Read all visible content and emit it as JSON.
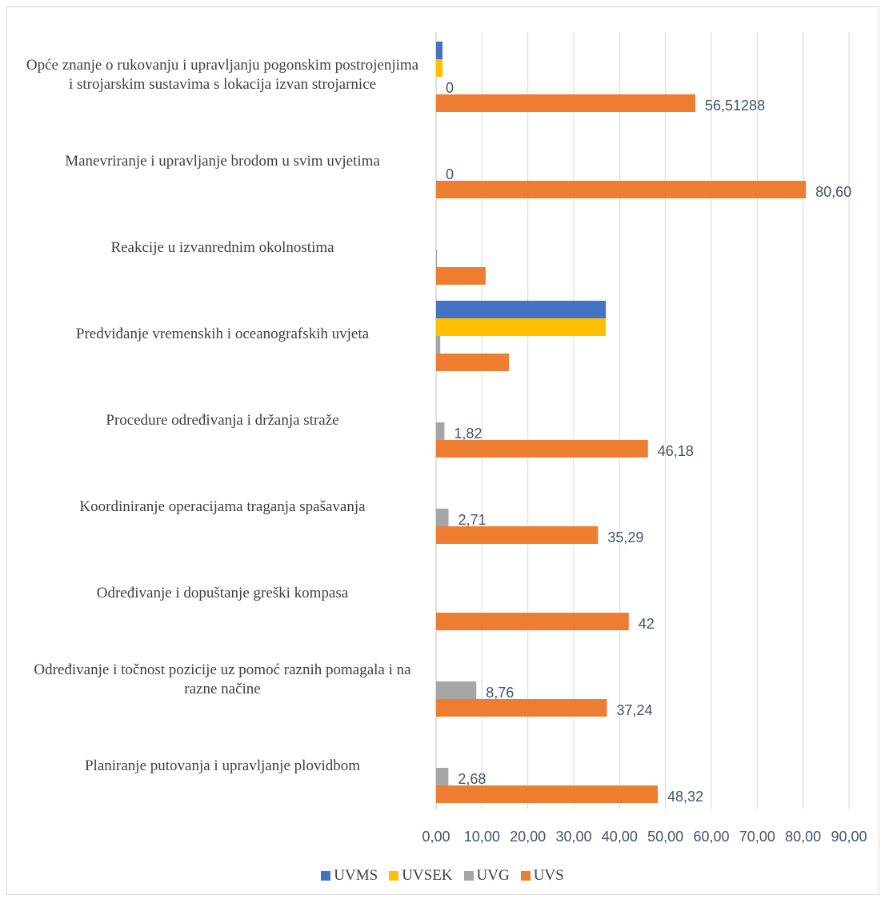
{
  "chart_data": {
    "type": "bar",
    "orientation": "horizontal",
    "categories": [
      "Opće znanje o rukovanju i upravljanju pogonskim postrojenjima i strojarskim sustavima s lokacija izvan strojarnice",
      "Manevriranje i upravljanje brodom u svim uvjetima",
      "Reakcije u izvanrednim okolnostima",
      "Predviđanje vremenskih i oceanografskih uvjeta",
      "Procedure određivanja i držanja straže",
      "Koordiniranje operacijama traganja spašavanja",
      "Određivanje i dopuštanje greški kompasa",
      "Određivanje i točnost pozicije uz pomoć raznih pomagala i na razne načine",
      "Planiranje putovanja i upravljanje plovidbom"
    ],
    "series": [
      {
        "name": "UVMS",
        "color": "#4472c4",
        "values": [
          1.4,
          null,
          null,
          37,
          null,
          null,
          null,
          null,
          null
        ]
      },
      {
        "name": "UVSEK",
        "color": "#ffc000",
        "values": [
          1.4,
          null,
          null,
          37,
          null,
          null,
          null,
          null,
          null
        ]
      },
      {
        "name": "UVG",
        "color": "#a5a5a5",
        "values": [
          0,
          0,
          0.2,
          0.9,
          1.82,
          2.71,
          null,
          8.76,
          2.68
        ],
        "value_labels": [
          "0",
          "0",
          null,
          null,
          "1,82",
          "2,71",
          null,
          "8,76",
          "2,68"
        ]
      },
      {
        "name": "UVS",
        "color": "#ed7d31",
        "values": [
          56.51288,
          80.6,
          10.8,
          15.9,
          46.18,
          35.29,
          42,
          37.24,
          48.32
        ],
        "value_labels": [
          "56,51288",
          "80,60",
          null,
          null,
          "46,18",
          "35,29",
          "42",
          "37,24",
          "48,32"
        ]
      }
    ],
    "xlim": [
      0,
      90
    ],
    "xticks": [
      {
        "value": 0,
        "label": "0,00"
      },
      {
        "value": 10,
        "label": "10,00"
      },
      {
        "value": 20,
        "label": "20,00"
      },
      {
        "value": 30,
        "label": "30,00"
      },
      {
        "value": 40,
        "label": "40,00"
      },
      {
        "value": 50,
        "label": "50,00"
      },
      {
        "value": 60,
        "label": "60,00"
      },
      {
        "value": 70,
        "label": "70,00"
      },
      {
        "value": 80,
        "label": "80,00"
      },
      {
        "value": 90,
        "label": "90,00"
      }
    ],
    "grid": true,
    "legend": "bottom"
  }
}
